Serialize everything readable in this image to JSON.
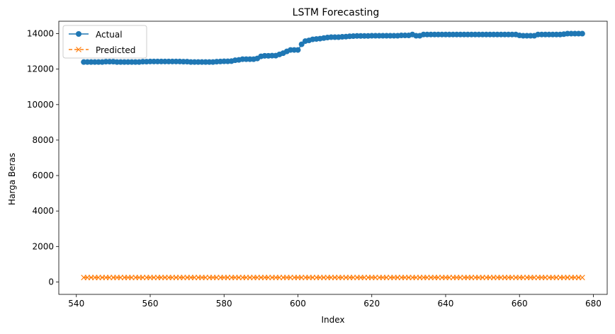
{
  "chart_data": {
    "type": "line",
    "title": "LSTM Forecasting",
    "xlabel": "Index",
    "ylabel": "Harga Beras",
    "xlim": [
      535.25,
      683.75
    ],
    "ylim": [
      -700,
      14700
    ],
    "xticks": [
      540,
      560,
      580,
      600,
      620,
      640,
      660,
      680
    ],
    "yticks": [
      0,
      2000,
      4000,
      6000,
      8000,
      10000,
      12000,
      14000
    ],
    "x_start": 542,
    "x_end": 677,
    "grid": false,
    "legend_position": "top-left",
    "series": [
      {
        "name": "Actual",
        "color": "#1f77b4",
        "marker": "circle",
        "linestyle": "solid",
        "values": [
          12400,
          12400,
          12400,
          12400,
          12400,
          12400,
          12420,
          12420,
          12420,
          12400,
          12400,
          12400,
          12400,
          12400,
          12400,
          12400,
          12420,
          12420,
          12430,
          12430,
          12430,
          12430,
          12430,
          12430,
          12430,
          12430,
          12430,
          12420,
          12420,
          12400,
          12400,
          12400,
          12400,
          12400,
          12400,
          12400,
          12420,
          12430,
          12440,
          12440,
          12450,
          12500,
          12520,
          12560,
          12560,
          12560,
          12560,
          12600,
          12720,
          12750,
          12750,
          12760,
          12760,
          12830,
          12900,
          13000,
          13080,
          13080,
          13080,
          13400,
          13580,
          13620,
          13680,
          13700,
          13720,
          13750,
          13780,
          13800,
          13800,
          13800,
          13820,
          13830,
          13850,
          13860,
          13870,
          13870,
          13870,
          13870,
          13880,
          13880,
          13880,
          13880,
          13880,
          13880,
          13880,
          13880,
          13900,
          13900,
          13900,
          13950,
          13880,
          13880,
          13950,
          13950,
          13950,
          13950,
          13950,
          13950,
          13950,
          13950,
          13950,
          13950,
          13950,
          13950,
          13950,
          13950,
          13950,
          13950,
          13950,
          13950,
          13950,
          13950,
          13950,
          13950,
          13950,
          13950,
          13950,
          13950,
          13900,
          13880,
          13880,
          13880,
          13880,
          13950,
          13950,
          13950,
          13950,
          13950,
          13950,
          13950,
          13970,
          14000,
          14000,
          14000,
          14000,
          14000
        ]
      },
      {
        "name": "Predicted",
        "color": "#ff7f0e",
        "marker": "x",
        "linestyle": "dashed",
        "constant_value": 250
      }
    ]
  }
}
